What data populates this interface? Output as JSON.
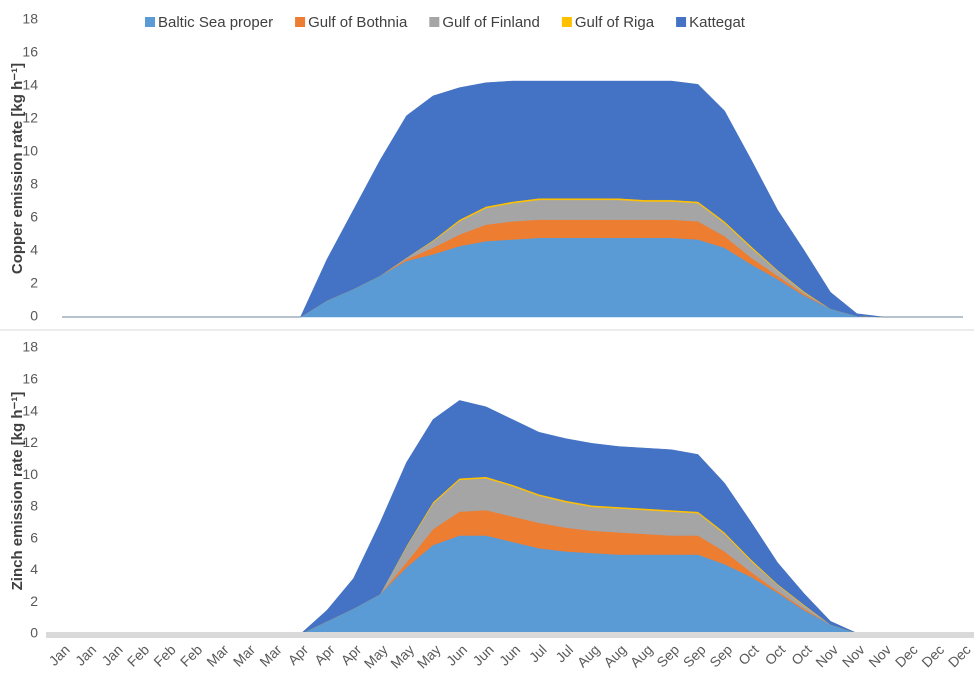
{
  "chart_data": [
    {
      "type": "stacked_area",
      "y_label": "Zinch emission rate [kg h⁻¹]",
      "categories": [
        "Jan",
        "Jan",
        "Jan",
        "Feb",
        "Feb",
        "Feb",
        "Mar",
        "Mar",
        "Mar",
        "Apr",
        "Apr",
        "Apr",
        "May",
        "May",
        "May",
        "Jun",
        "Jun",
        "Jun",
        "Jul",
        "Jul",
        "Aug",
        "Aug",
        "Aug",
        "Sep",
        "Sep",
        "Sep",
        "Oct",
        "Oct",
        "Oct",
        "Nov",
        "Nov",
        "Nov",
        "Dec",
        "Dec",
        "Dec"
      ],
      "ylim": [
        0,
        18
      ],
      "yticks": [
        0,
        2,
        4,
        6,
        8,
        10,
        12,
        14,
        16,
        18
      ],
      "series": [
        {
          "color": "#5b9bd5",
          "values": [
            0,
            0,
            0,
            0,
            0,
            0,
            0,
            0,
            0,
            0,
            0.8,
            1.6,
            2.5,
            4.2,
            5.6,
            6.2,
            6.2,
            5.8,
            5.4,
            5.2,
            5.1,
            5.0,
            5.0,
            5.0,
            5.0,
            4.4,
            3.6,
            2.6,
            1.5,
            0.6,
            0.05,
            0,
            0,
            0,
            0
          ]
        },
        {
          "color": "#ed7d31",
          "values": [
            0,
            0,
            0,
            0,
            0,
            0,
            0,
            0,
            0,
            0,
            0,
            0,
            0,
            0.3,
            1.0,
            1.5,
            1.6,
            1.6,
            1.6,
            1.5,
            1.4,
            1.4,
            1.3,
            1.2,
            1.2,
            0.8,
            0.3,
            0.1,
            0.1,
            0,
            0,
            0,
            0,
            0,
            0
          ]
        },
        {
          "color": "#a5a5a5",
          "values": [
            0,
            0,
            0,
            0,
            0,
            0,
            0,
            0,
            0,
            0,
            0,
            0,
            0,
            1.0,
            1.6,
            2.0,
            2.0,
            1.9,
            1.7,
            1.6,
            1.5,
            1.5,
            1.5,
            1.5,
            1.4,
            1.1,
            0.7,
            0.4,
            0.2,
            0,
            0,
            0,
            0,
            0,
            0
          ]
        },
        {
          "color": "#ffc000",
          "values": [
            0,
            0,
            0,
            0,
            0,
            0,
            0,
            0,
            0,
            0,
            0,
            0,
            0,
            0.05,
            0.1,
            0.1,
            0.1,
            0.1,
            0.1,
            0.1,
            0.1,
            0.1,
            0.1,
            0.1,
            0.1,
            0.1,
            0.1,
            0.05,
            0.05,
            0,
            0,
            0,
            0,
            0,
            0
          ]
        },
        {
          "color": "#4472c4",
          "values": [
            0,
            0,
            0,
            0,
            0,
            0,
            0,
            0,
            0,
            0,
            0.7,
            1.9,
            4.5,
            5.25,
            5.2,
            4.9,
            4.4,
            4.1,
            3.9,
            3.9,
            3.9,
            3.8,
            3.8,
            3.8,
            3.6,
            3.1,
            2.35,
            1.35,
            0.7,
            0.2,
            0,
            0,
            0,
            0,
            0
          ]
        }
      ]
    },
    {
      "type": "stacked_area",
      "y_label": "Copper  emission rate  [kg h⁻¹]",
      "ylim": [
        0,
        18
      ],
      "yticks": [
        0,
        2,
        4,
        6,
        8,
        10,
        12,
        14,
        16,
        18
      ],
      "series": [
        {
          "name": "Baltic Sea proper",
          "color": "#5b9bd5",
          "values": [
            0,
            0,
            0,
            0,
            0,
            0,
            0,
            0,
            0,
            0,
            1.0,
            1.7,
            2.5,
            3.4,
            3.8,
            4.3,
            4.6,
            4.7,
            4.8,
            4.8,
            4.8,
            4.8,
            4.8,
            4.8,
            4.7,
            4.2,
            3.2,
            2.3,
            1.3,
            0.5,
            0.05,
            0,
            0,
            0,
            0
          ]
        },
        {
          "name": "Gulf of Bothnia",
          "color": "#ed7d31",
          "values": [
            0,
            0,
            0,
            0,
            0,
            0,
            0,
            0,
            0,
            0,
            0,
            0,
            0,
            0.1,
            0.4,
            0.7,
            1.0,
            1.1,
            1.1,
            1.1,
            1.1,
            1.1,
            1.1,
            1.1,
            1.1,
            0.7,
            0.4,
            0.2,
            0.1,
            0,
            0,
            0,
            0,
            0,
            0
          ]
        },
        {
          "name": "Gulf of Finland",
          "color": "#a5a5a5",
          "values": [
            0,
            0,
            0,
            0,
            0,
            0,
            0,
            0,
            0,
            0,
            0,
            0,
            0,
            0.1,
            0.4,
            0.8,
            1.0,
            1.1,
            1.2,
            1.2,
            1.2,
            1.2,
            1.1,
            1.1,
            1.1,
            0.8,
            0.6,
            0.3,
            0.1,
            0,
            0,
            0,
            0,
            0,
            0
          ]
        },
        {
          "name": "Gulf of Riga",
          "color": "#ffc000",
          "values": [
            0,
            0,
            0,
            0,
            0,
            0,
            0,
            0,
            0,
            0,
            0,
            0,
            0,
            0,
            0.05,
            0.1,
            0.1,
            0.1,
            0.1,
            0.1,
            0.1,
            0.1,
            0.1,
            0.1,
            0.1,
            0.1,
            0.1,
            0.05,
            0.05,
            0,
            0,
            0,
            0,
            0,
            0
          ]
        },
        {
          "name": "Kattegat",
          "color": "#4472c4",
          "values": [
            0,
            0,
            0,
            0,
            0,
            0,
            0,
            0,
            0,
            0,
            2.5,
            4.8,
            7.0,
            8.6,
            8.75,
            8.0,
            7.5,
            7.3,
            7.1,
            7.1,
            7.1,
            7.1,
            7.2,
            7.2,
            7.1,
            6.7,
            5.25,
            3.65,
            2.5,
            1.0,
            0.15,
            0,
            0,
            0,
            0
          ]
        }
      ]
    }
  ]
}
